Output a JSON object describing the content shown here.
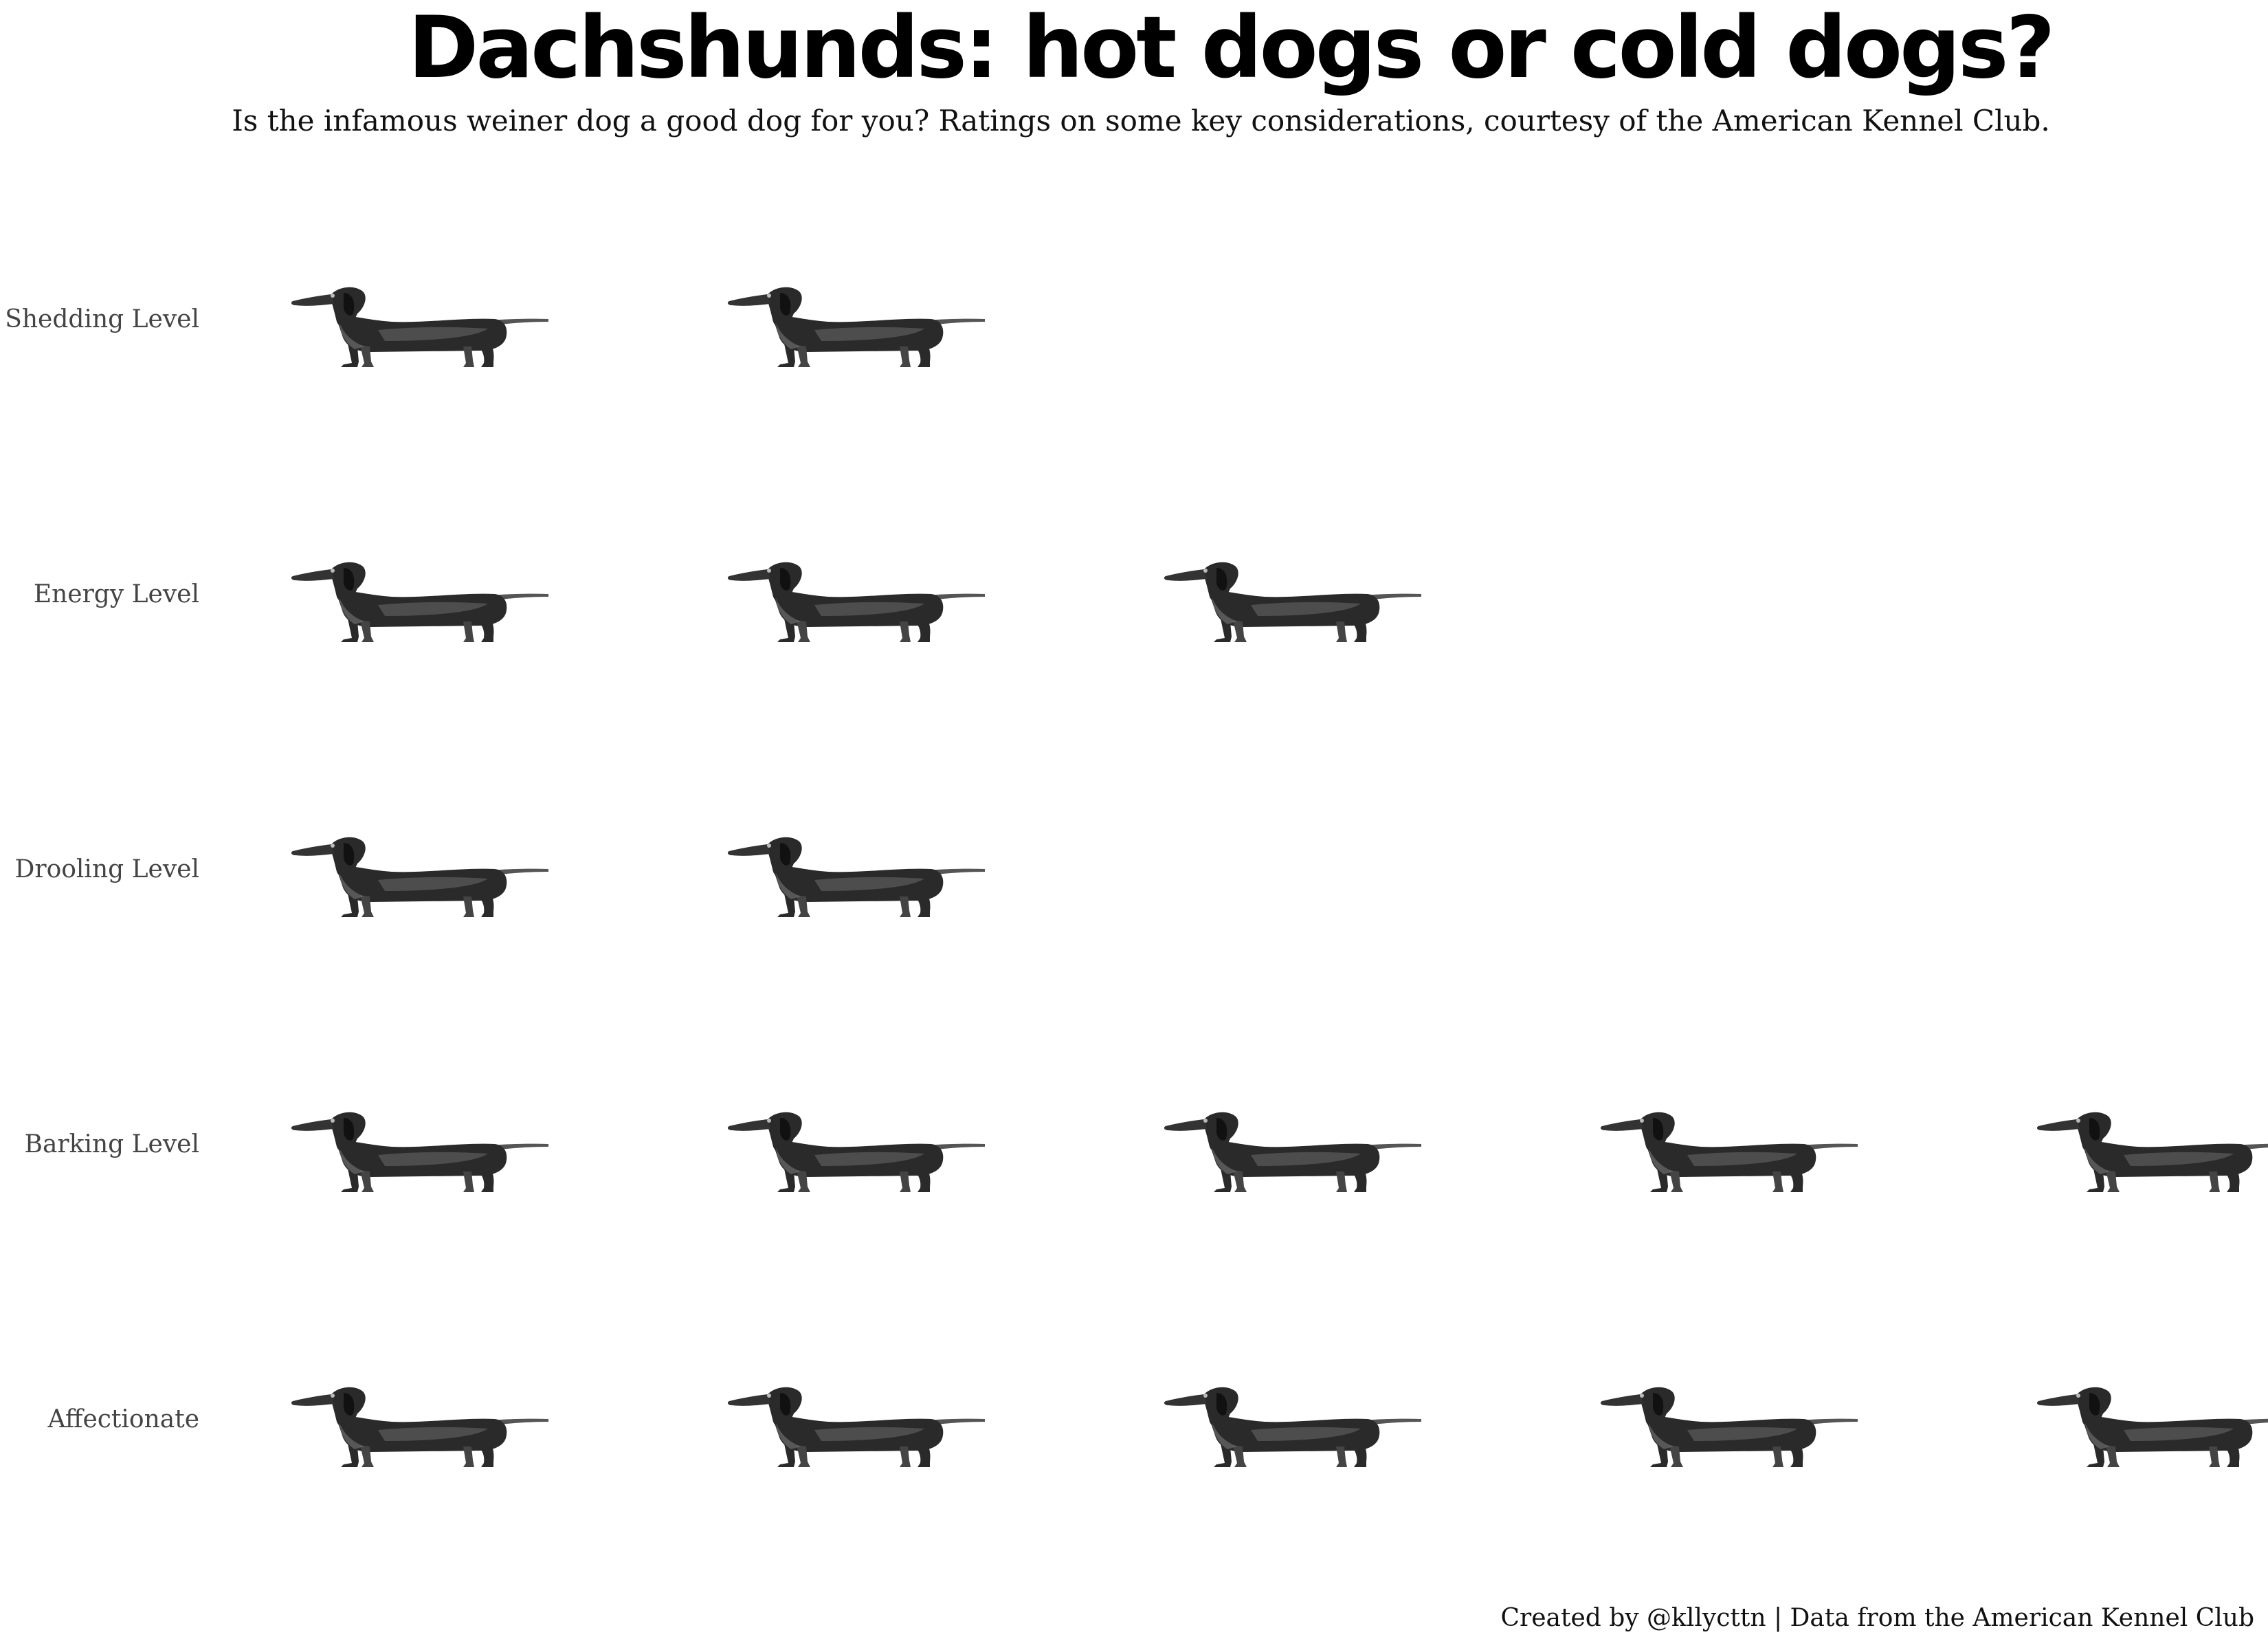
{
  "title": "Dachshunds: hot dogs or cold dogs?",
  "subtitle": "Is the infamous weiner dog a good dog for you? Ratings on some key considerations, courtesy of the American Kennel Club.",
  "caption": "Created by @kllycttn | Data from the American Kennel Club",
  "colors": {
    "dog_dark": "#222222",
    "dog_mid": "#555555",
    "dog_light": "#8a8a8a",
    "label": "#444444"
  },
  "icon": "dachshund-icon",
  "chart_data": {
    "type": "pictograph",
    "max_rating": 5,
    "categories": [
      "Shedding Level",
      "Energy Level",
      "Drooling Level",
      "Barking Level",
      "Affectionate"
    ],
    "values": [
      2,
      3,
      2,
      5,
      5
    ],
    "grid": false
  }
}
